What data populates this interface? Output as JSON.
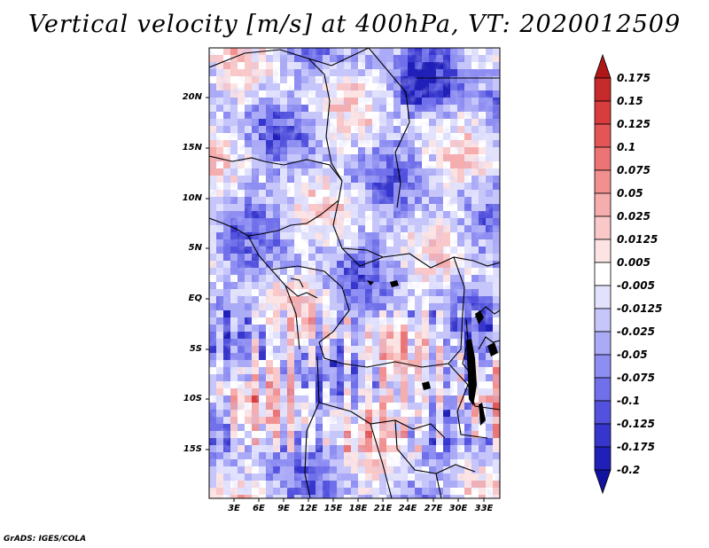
{
  "title": "Vertical velocity [m/s] at 400hPa, VT: 2020012509",
  "credit": "GrADS: IGES/COLA",
  "chart_data": {
    "type": "heatmap",
    "title": "Vertical velocity [m/s] at 400hPa, VT: 2020012509",
    "variable": "Vertical velocity",
    "units": "m/s",
    "level": "400hPa",
    "valid_time": "2020012509",
    "y_ticks": [
      "20N",
      "15N",
      "10N",
      "5N",
      "EQ",
      "5S",
      "10S",
      "15S"
    ],
    "x_ticks": [
      "3E",
      "6E",
      "9E",
      "12E",
      "15E",
      "18E",
      "21E",
      "24E",
      "27E",
      "30E",
      "33E"
    ],
    "colorbar_levels": [
      "0.175",
      "0.15",
      "0.125",
      "0.1",
      "0.075",
      "0.05",
      "0.025",
      "0.0125",
      "0.005",
      "-0.005",
      "-0.0125",
      "-0.025",
      "-0.05",
      "-0.075",
      "-0.1",
      "-0.125",
      "-0.175",
      "-0.2"
    ],
    "colorbar_colors": [
      "#b01818",
      "#c62a2a",
      "#d83c3c",
      "#e45656",
      "#ec7474",
      "#f29090",
      "#f6adad",
      "#fac8c8",
      "#fde4e4",
      "#ffffff",
      "#e2e2fd",
      "#c6c6fb",
      "#aaaaf7",
      "#8e8ef2",
      "#7070ea",
      "#5252de",
      "#3636cc",
      "#2020b8",
      "#1212a0"
    ]
  }
}
